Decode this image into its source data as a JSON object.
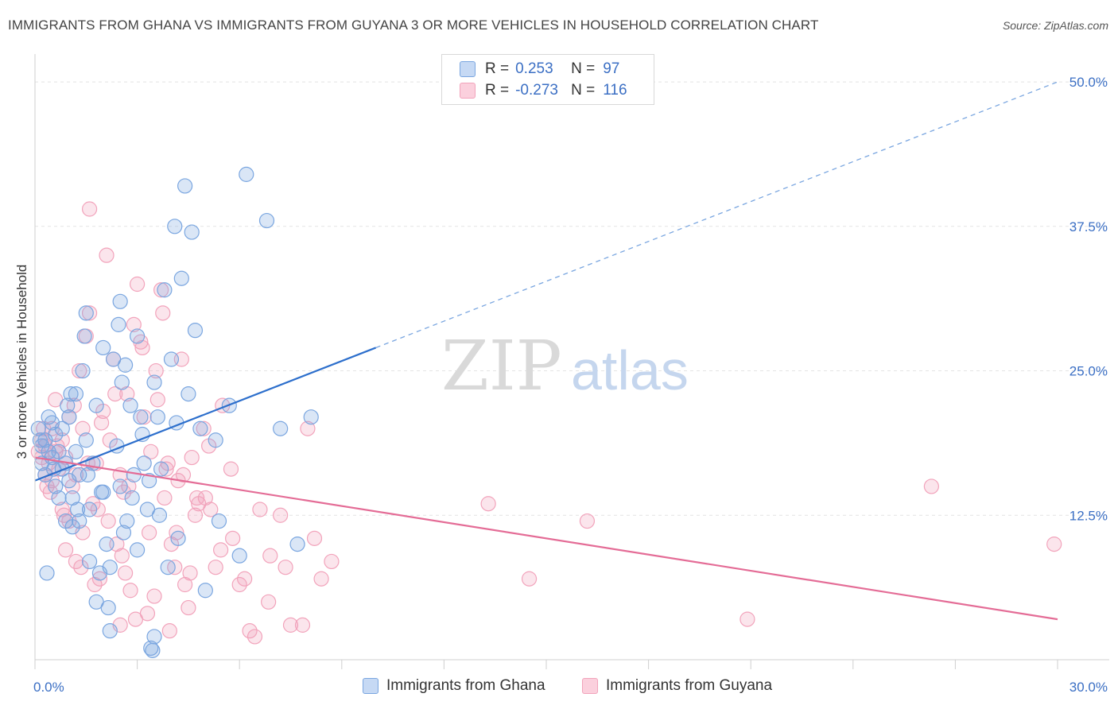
{
  "title": "IMMIGRANTS FROM GHANA VS IMMIGRANTS FROM GUYANA 3 OR MORE VEHICLES IN HOUSEHOLD CORRELATION CHART",
  "source": "Source: ZipAtlas.com",
  "colors": {
    "ghana": "#7aa6e0",
    "ghana_line": "#2d6fcc",
    "guyana": "#f2a3bb",
    "guyana_line": "#e46c96",
    "accent_text": "#3b6fc4"
  },
  "legend": {
    "r_label": "R =",
    "n_label": "N =",
    "ghana": {
      "r": "0.253",
      "n": "97"
    },
    "guyana": {
      "r": "-0.273",
      "n": "116"
    }
  },
  "bottom_legend": {
    "ghana": "Immigrants from Ghana",
    "guyana": "Immigrants from Guyana"
  },
  "chart_data": {
    "type": "scatter",
    "ylabel": "3 or more Vehicles in Household",
    "xlim": [
      0,
      30
    ],
    "ylim": [
      0,
      52
    ],
    "x_tick_labels": [
      "0.0%",
      "30.0%"
    ],
    "y_ticks": [
      12.5,
      25.0,
      37.5,
      50.0
    ],
    "y_tick_labels": [
      "12.5%",
      "25.0%",
      "37.5%",
      "50.0%"
    ],
    "grid": true,
    "legend_position": "top-center",
    "series": [
      {
        "name": "Immigrants from Ghana",
        "regression": {
          "x0": 0,
          "y0": 15.5,
          "x1": 10,
          "y1": 27.0,
          "dashed_to_x": 30,
          "dashed_to_y": 50.0
        },
        "points": [
          [
            0.1,
            20
          ],
          [
            0.2,
            18.5
          ],
          [
            0.2,
            17
          ],
          [
            0.3,
            19
          ],
          [
            0.3,
            16
          ],
          [
            0.4,
            21
          ],
          [
            0.4,
            18
          ],
          [
            0.5,
            20.5
          ],
          [
            0.5,
            17.5
          ],
          [
            0.6,
            15
          ],
          [
            0.6,
            19.5
          ],
          [
            0.7,
            14
          ],
          [
            0.7,
            18
          ],
          [
            0.8,
            16.5
          ],
          [
            0.8,
            20
          ],
          [
            0.9,
            12
          ],
          [
            0.9,
            17
          ],
          [
            1.0,
            15.5
          ],
          [
            1.0,
            21
          ],
          [
            1.1,
            11.5
          ],
          [
            1.1,
            14
          ],
          [
            1.2,
            18
          ],
          [
            1.2,
            23
          ],
          [
            1.3,
            12
          ],
          [
            1.3,
            16
          ],
          [
            1.4,
            25
          ],
          [
            1.5,
            30
          ],
          [
            1.5,
            19
          ],
          [
            1.6,
            13
          ],
          [
            1.6,
            8.5
          ],
          [
            1.7,
            17
          ],
          [
            1.8,
            22
          ],
          [
            1.8,
            5
          ],
          [
            1.9,
            7.5
          ],
          [
            2.0,
            27
          ],
          [
            2.0,
            14.5
          ],
          [
            2.1,
            10
          ],
          [
            2.2,
            2.5
          ],
          [
            2.2,
            8
          ],
          [
            2.3,
            26
          ],
          [
            2.4,
            18.5
          ],
          [
            2.5,
            31
          ],
          [
            2.5,
            15
          ],
          [
            2.6,
            11
          ],
          [
            2.7,
            12
          ],
          [
            2.8,
            22
          ],
          [
            2.9,
            16
          ],
          [
            3.0,
            28
          ],
          [
            3.0,
            9.5
          ],
          [
            3.1,
            21
          ],
          [
            3.2,
            17
          ],
          [
            3.3,
            13
          ],
          [
            3.4,
            1
          ],
          [
            3.5,
            2
          ],
          [
            3.5,
            24
          ],
          [
            3.6,
            21
          ],
          [
            3.7,
            16.5
          ],
          [
            3.8,
            32
          ],
          [
            3.9,
            8
          ],
          [
            4.0,
            26
          ],
          [
            4.1,
            37.5
          ],
          [
            4.2,
            10.5
          ],
          [
            4.3,
            33
          ],
          [
            4.4,
            41
          ],
          [
            4.5,
            23
          ],
          [
            4.6,
            37
          ],
          [
            4.7,
            28.5
          ],
          [
            5.0,
            6
          ],
          [
            5.3,
            19
          ],
          [
            5.7,
            22
          ],
          [
            6.2,
            42
          ],
          [
            6.8,
            38
          ],
          [
            7.2,
            20
          ],
          [
            7.7,
            10
          ],
          [
            8.1,
            21
          ],
          [
            0.35,
            7.5
          ],
          [
            1.45,
            28
          ],
          [
            2.55,
            24
          ],
          [
            3.15,
            19.5
          ],
          [
            0.95,
            22
          ],
          [
            1.55,
            16
          ],
          [
            2.15,
            4.5
          ],
          [
            2.85,
            14
          ],
          [
            3.65,
            12.5
          ],
          [
            0.55,
            16.5
          ],
          [
            1.25,
            13
          ],
          [
            1.95,
            14.5
          ],
          [
            2.65,
            25.5
          ],
          [
            3.35,
            15.5
          ],
          [
            4.15,
            20.5
          ],
          [
            4.85,
            20
          ],
          [
            5.4,
            12
          ],
          [
            6.0,
            9
          ],
          [
            1.05,
            23
          ],
          [
            0.15,
            19
          ],
          [
            3.45,
            0.8
          ],
          [
            2.45,
            29
          ]
        ]
      },
      {
        "name": "Immigrants from Guyana",
        "regression": {
          "x0": 0,
          "y0": 17.5,
          "x1": 30,
          "y1": 3.5
        },
        "points": [
          [
            0.1,
            18
          ],
          [
            0.2,
            17.5
          ],
          [
            0.2,
            19
          ],
          [
            0.3,
            16
          ],
          [
            0.3,
            18.5
          ],
          [
            0.4,
            17
          ],
          [
            0.5,
            20
          ],
          [
            0.5,
            15.5
          ],
          [
            0.6,
            22.5
          ],
          [
            0.6,
            18
          ],
          [
            0.7,
            16.5
          ],
          [
            0.8,
            13
          ],
          [
            0.8,
            19
          ],
          [
            0.9,
            9.5
          ],
          [
            0.9,
            17.5
          ],
          [
            1.0,
            12
          ],
          [
            1.0,
            21
          ],
          [
            1.1,
            15
          ],
          [
            1.2,
            8.5
          ],
          [
            1.2,
            16
          ],
          [
            1.3,
            25
          ],
          [
            1.4,
            20
          ],
          [
            1.4,
            11
          ],
          [
            1.5,
            28
          ],
          [
            1.6,
            30
          ],
          [
            1.6,
            39
          ],
          [
            1.7,
            13.5
          ],
          [
            1.8,
            17
          ],
          [
            1.9,
            7
          ],
          [
            2.0,
            21.5
          ],
          [
            2.1,
            35
          ],
          [
            2.2,
            19
          ],
          [
            2.3,
            26
          ],
          [
            2.4,
            10
          ],
          [
            2.5,
            16
          ],
          [
            2.5,
            3
          ],
          [
            2.6,
            14.5
          ],
          [
            2.7,
            23
          ],
          [
            2.8,
            6
          ],
          [
            2.9,
            29
          ],
          [
            3.0,
            32.5
          ],
          [
            3.1,
            27.5
          ],
          [
            3.2,
            21
          ],
          [
            3.3,
            4
          ],
          [
            3.4,
            18
          ],
          [
            3.5,
            5.5
          ],
          [
            3.6,
            22.5
          ],
          [
            3.7,
            32
          ],
          [
            3.8,
            14
          ],
          [
            3.9,
            17
          ],
          [
            4.0,
            10
          ],
          [
            4.1,
            8
          ],
          [
            4.2,
            15.5
          ],
          [
            4.3,
            26
          ],
          [
            4.4,
            6.5
          ],
          [
            4.5,
            4.5
          ],
          [
            4.6,
            17.5
          ],
          [
            4.7,
            12.5
          ],
          [
            4.8,
            13.5
          ],
          [
            5.0,
            14
          ],
          [
            5.1,
            18.5
          ],
          [
            5.3,
            8
          ],
          [
            5.5,
            22
          ],
          [
            5.8,
            10.5
          ],
          [
            6.0,
            6.5
          ],
          [
            6.3,
            2.5
          ],
          [
            6.6,
            13
          ],
          [
            6.9,
            9
          ],
          [
            7.2,
            12.5
          ],
          [
            7.5,
            3
          ],
          [
            8.0,
            20
          ],
          [
            8.2,
            10.5
          ],
          [
            8.4,
            7
          ],
          [
            8.7,
            8.5
          ],
          [
            13.3,
            13.5
          ],
          [
            14.5,
            7
          ],
          [
            16.2,
            12
          ],
          [
            20.9,
            3.5
          ],
          [
            26.3,
            15
          ],
          [
            29.9,
            10
          ],
          [
            0.25,
            20
          ],
          [
            0.45,
            14.5
          ],
          [
            0.65,
            18.5
          ],
          [
            0.85,
            12.5
          ],
          [
            1.15,
            22
          ],
          [
            1.35,
            8
          ],
          [
            1.55,
            17
          ],
          [
            1.75,
            6.5
          ],
          [
            1.95,
            20.5
          ],
          [
            2.15,
            12
          ],
          [
            2.35,
            23
          ],
          [
            2.55,
            9
          ],
          [
            2.75,
            15
          ],
          [
            2.95,
            3.5
          ],
          [
            3.15,
            27
          ],
          [
            3.35,
            11
          ],
          [
            3.55,
            25
          ],
          [
            3.75,
            30
          ],
          [
            3.95,
            2.5
          ],
          [
            4.15,
            11
          ],
          [
            4.35,
            16
          ],
          [
            4.55,
            7.5
          ],
          [
            4.75,
            14
          ],
          [
            4.95,
            20
          ],
          [
            5.15,
            13
          ],
          [
            5.45,
            9.5
          ],
          [
            5.75,
            16.5
          ],
          [
            6.15,
            7
          ],
          [
            6.45,
            2
          ],
          [
            6.85,
            5
          ],
          [
            7.35,
            8
          ],
          [
            7.85,
            3
          ],
          [
            0.35,
            15
          ],
          [
            1.85,
            13
          ],
          [
            2.65,
            7.5
          ],
          [
            3.85,
            16.5
          ]
        ]
      }
    ]
  }
}
